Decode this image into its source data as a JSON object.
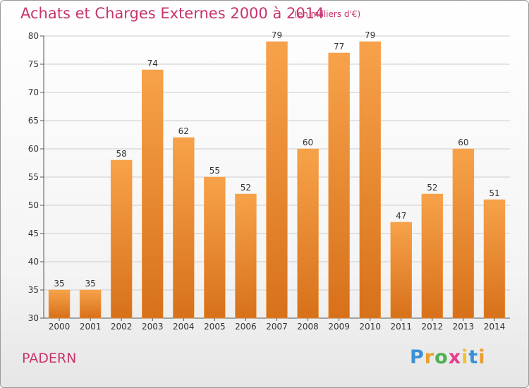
{
  "header": {
    "title": "Achats et Charges Externes 2000 à 2014",
    "subtitle": "(en milliers d'€)"
  },
  "place_name": "PADERN",
  "logo": {
    "letters": [
      "P",
      "r",
      "o",
      "x",
      "i",
      "t",
      "i"
    ],
    "colors": [
      "#3a8fd6",
      "#e8a030",
      "#4caf50",
      "#e83e8c",
      "#f2c12e",
      "#3a8fd6",
      "#e8a030"
    ]
  },
  "colors": {
    "bar_top": "#f7a24a",
    "bar_bottom": "#d7711a",
    "grid": "#cccccc",
    "accent": "#c8336e"
  },
  "chart_data": {
    "type": "bar",
    "title": "Achats et Charges Externes 2000 à 2014",
    "subtitle": "(en milliers d'€)",
    "categories": [
      "2000",
      "2001",
      "2002",
      "2003",
      "2004",
      "2005",
      "2006",
      "2007",
      "2008",
      "2009",
      "2010",
      "2011",
      "2012",
      "2013",
      "2014"
    ],
    "values": [
      35,
      35,
      58,
      74,
      62,
      55,
      52,
      79,
      60,
      77,
      79,
      47,
      52,
      60,
      51
    ],
    "ylim": [
      30,
      80
    ],
    "yticks": [
      30,
      35,
      40,
      45,
      50,
      55,
      60,
      65,
      70,
      75,
      80
    ],
    "grid": true,
    "xlabel": "",
    "ylabel": ""
  }
}
